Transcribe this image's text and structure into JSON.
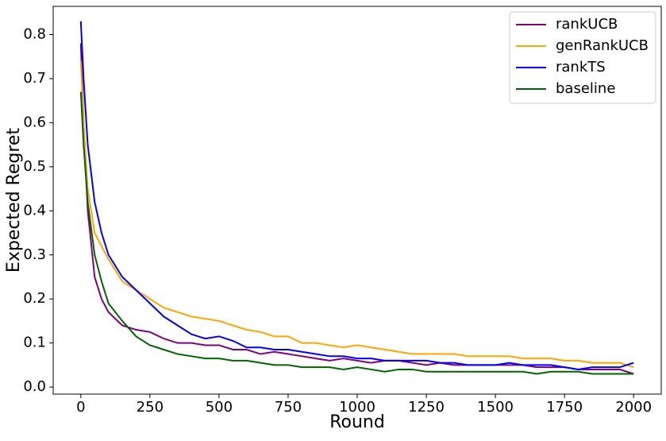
{
  "chart_data": {
    "type": "line",
    "x_label": "Round",
    "y_label": "Expected Regret",
    "x": [
      0,
      10,
      25,
      50,
      75,
      100,
      150,
      200,
      250,
      300,
      350,
      400,
      450,
      500,
      550,
      600,
      650,
      700,
      750,
      800,
      850,
      900,
      950,
      1000,
      1050,
      1100,
      1150,
      1200,
      1250,
      1300,
      1350,
      1400,
      1450,
      1500,
      1550,
      1600,
      1650,
      1700,
      1750,
      1800,
      1850,
      1900,
      1950,
      2000
    ],
    "series": [
      {
        "name": "rankUCB",
        "color": "#800080",
        "values": [
          0.78,
          0.6,
          0.4,
          0.25,
          0.2,
          0.17,
          0.14,
          0.13,
          0.125,
          0.11,
          0.1,
          0.1,
          0.095,
          0.095,
          0.085,
          0.085,
          0.075,
          0.08,
          0.075,
          0.07,
          0.065,
          0.06,
          0.065,
          0.06,
          0.055,
          0.06,
          0.06,
          0.055,
          0.05,
          0.055,
          0.05,
          0.05,
          0.05,
          0.05,
          0.05,
          0.05,
          0.045,
          0.045,
          0.045,
          0.04,
          0.04,
          0.04,
          0.04,
          0.03
        ]
      },
      {
        "name": "genRankUCB",
        "color": "#ffa500",
        "values": [
          0.74,
          0.6,
          0.45,
          0.35,
          0.32,
          0.29,
          0.24,
          0.22,
          0.2,
          0.18,
          0.17,
          0.16,
          0.155,
          0.15,
          0.14,
          0.13,
          0.125,
          0.115,
          0.115,
          0.1,
          0.1,
          0.095,
          0.09,
          0.095,
          0.09,
          0.085,
          0.08,
          0.075,
          0.075,
          0.075,
          0.075,
          0.07,
          0.07,
          0.07,
          0.07,
          0.065,
          0.065,
          0.065,
          0.06,
          0.06,
          0.055,
          0.055,
          0.055,
          0.045
        ]
      },
      {
        "name": "rankTS",
        "color": "#0000ff",
        "values": [
          0.83,
          0.7,
          0.55,
          0.42,
          0.35,
          0.3,
          0.25,
          0.22,
          0.19,
          0.16,
          0.14,
          0.12,
          0.11,
          0.115,
          0.105,
          0.09,
          0.09,
          0.085,
          0.085,
          0.08,
          0.075,
          0.07,
          0.07,
          0.065,
          0.065,
          0.06,
          0.06,
          0.06,
          0.06,
          0.055,
          0.055,
          0.05,
          0.05,
          0.05,
          0.055,
          0.05,
          0.05,
          0.05,
          0.045,
          0.04,
          0.045,
          0.045,
          0.045,
          0.055
        ]
      },
      {
        "name": "baseline",
        "color": "#006400",
        "values": [
          0.67,
          0.55,
          0.42,
          0.3,
          0.24,
          0.19,
          0.15,
          0.115,
          0.095,
          0.085,
          0.075,
          0.07,
          0.065,
          0.065,
          0.06,
          0.06,
          0.055,
          0.05,
          0.05,
          0.045,
          0.045,
          0.045,
          0.04,
          0.045,
          0.04,
          0.035,
          0.04,
          0.04,
          0.035,
          0.035,
          0.035,
          0.035,
          0.035,
          0.035,
          0.035,
          0.035,
          0.03,
          0.035,
          0.035,
          0.035,
          0.03,
          0.03,
          0.03,
          0.03
        ]
      }
    ],
    "xlim": [
      -100,
      2100
    ],
    "ylim": [
      -0.016,
      0.864
    ],
    "xticks": [
      0,
      250,
      500,
      750,
      1000,
      1250,
      1500,
      1750,
      2000
    ],
    "yticks": [
      {
        "value": 0,
        "label": "0.0"
      },
      0.1,
      0.2,
      0.3,
      0.4,
      0.5,
      0.6,
      0.7,
      0.8
    ],
    "legend": "upper right",
    "grid": false
  }
}
